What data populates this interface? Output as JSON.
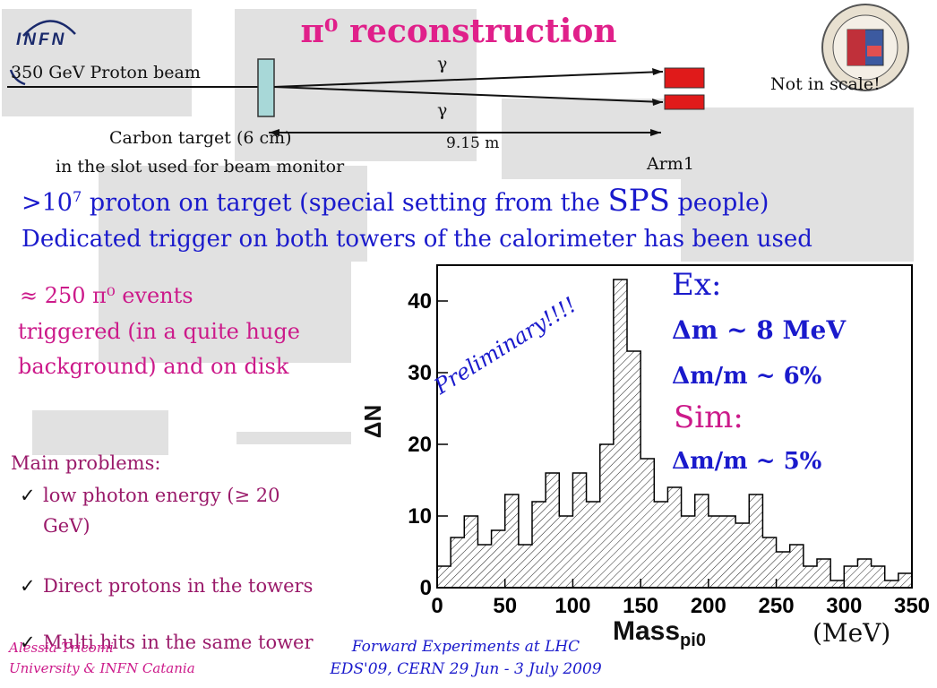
{
  "slide": {
    "title_html": "π⁰ reconstruction",
    "title": "π⁰ reconstruction"
  },
  "logos": {
    "infn_text": "INFN",
    "seal_name": "university-seal"
  },
  "diagram": {
    "beam_label": "350 GeV Proton beam",
    "gamma_top": "γ",
    "gamma_bottom": "γ",
    "not_in_scale": "Not in scale!",
    "target_label_1": "Carbon target (6 cm)",
    "target_label_2": "in the slot used for beam monitor",
    "distance": "9.15 m",
    "arm_label": "Arm1"
  },
  "bullets": {
    "line1_pre": ">10",
    "line1_sup": "7",
    "line1_mid": " proton on target (special setting from the ",
    "line1_sps": "SPS",
    "line1_post": " people)",
    "line2": "Dedicated trigger on both towers of the calorimeter has been used"
  },
  "events": {
    "line1": "≈ 250 π⁰ events",
    "line2": "triggered (in a quite huge",
    "line3": "background) and on disk"
  },
  "problems": {
    "heading": "Main problems:",
    "items": [
      "low photon energy (≥ 20",
      "GeV)",
      "Direct protons in the towers",
      "Multi hits in the same tower"
    ]
  },
  "results": {
    "ex": "Ex:",
    "dm": "Δm ~ 8 MeV",
    "dmm": "Δm/m ~ 6%",
    "sim": "Sim:",
    "dmm_sim": "Δm/m ~ 5%"
  },
  "footer": {
    "author": "Alessia Tricomi",
    "affil": "University & INFN Catania",
    "conf1": "Forward Experiments at LHC",
    "conf2": "EDS'09, CERN 29 Jun - 3 July 2009"
  },
  "chart_data": {
    "type": "bar",
    "annotation": "Preliminary!!!!",
    "unit_label": "(MeV)",
    "xlabel": "Mass",
    "xlabel_sub": "pi0",
    "ylabel": "ΔN",
    "xlim": [
      0,
      350
    ],
    "ylim": [
      0,
      45
    ],
    "x_ticks": [
      "0",
      "50",
      "100",
      "150",
      "200",
      "250",
      "300",
      "350"
    ],
    "y_ticks": [
      "0",
      "10",
      "20",
      "30",
      "40"
    ],
    "bin_width": 10,
    "x": [
      5,
      15,
      25,
      35,
      45,
      55,
      65,
      75,
      85,
      95,
      105,
      115,
      125,
      135,
      145,
      155,
      165,
      175,
      185,
      195,
      205,
      215,
      225,
      235,
      245,
      255,
      265,
      275,
      285,
      295,
      305,
      315,
      325,
      335,
      345
    ],
    "values": [
      3,
      7,
      10,
      6,
      8,
      13,
      6,
      12,
      16,
      10,
      16,
      12,
      20,
      43,
      33,
      18,
      12,
      14,
      10,
      13,
      10,
      10,
      9,
      13,
      7,
      5,
      6,
      3,
      4,
      1,
      3,
      4,
      3,
      1,
      2
    ]
  }
}
